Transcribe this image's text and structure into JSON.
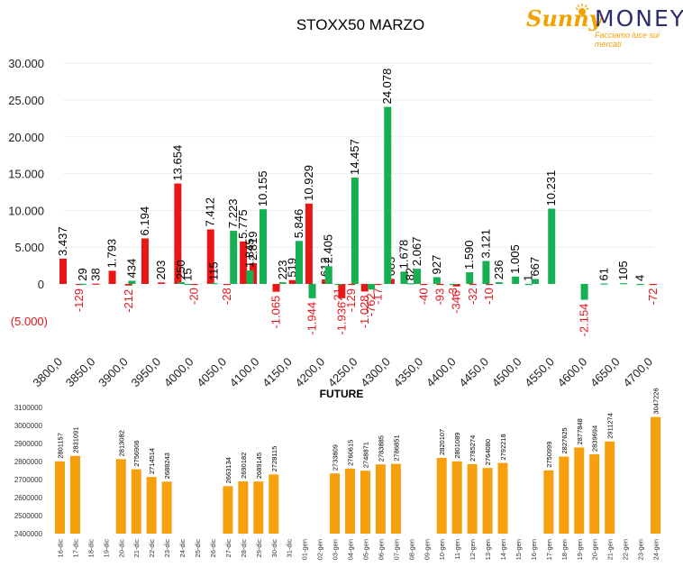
{
  "logo": {
    "text_a": "Sunny",
    "text_b": "MONEY",
    "tagline": "Facciamo luce sui mercati"
  },
  "colors": {
    "red": "#ea1616",
    "green": "#16b052",
    "orange": "#f5a00c",
    "neg_label": "#e8141b",
    "axis_text": "#222222"
  },
  "chart_data": [
    {
      "type": "bar",
      "title": "STOXX50 MARZO",
      "ylim": [
        -5000,
        30000
      ],
      "yticks": [
        {
          "v": 30000,
          "label": "30.000"
        },
        {
          "v": 25000,
          "label": "25.000"
        },
        {
          "v": 20000,
          "label": "20.000"
        },
        {
          "v": 15000,
          "label": "15.000"
        },
        {
          "v": 10000,
          "label": "10.000"
        },
        {
          "v": 5000,
          "label": "5.000"
        },
        {
          "v": 0,
          "label": "0"
        },
        {
          "v": -5000,
          "label": "(5.000)"
        }
      ],
      "xticks": [
        {
          "v": 3800,
          "label": "3800,0"
        },
        {
          "v": 3850,
          "label": "3850,0"
        },
        {
          "v": 3900,
          "label": "3900,0"
        },
        {
          "v": 3950,
          "label": "3950,0"
        },
        {
          "v": 4000,
          "label": "4000,0"
        },
        {
          "v": 4050,
          "label": "4050,0"
        },
        {
          "v": 4100,
          "label": "4100,0"
        },
        {
          "v": 4150,
          "label": "4150,0"
        },
        {
          "v": 4200,
          "label": "4200,0"
        },
        {
          "v": 4250,
          "label": "4250,0"
        },
        {
          "v": 4300,
          "label": "4300,0"
        },
        {
          "v": 4350,
          "label": "4350,0"
        },
        {
          "v": 4400,
          "label": "4400,0"
        },
        {
          "v": 4450,
          "label": "4450,0"
        },
        {
          "v": 4500,
          "label": "4500,0"
        },
        {
          "v": 4550,
          "label": "4550,0"
        },
        {
          "v": 4600,
          "label": "4600,0"
        },
        {
          "v": 4650,
          "label": "4650,0"
        },
        {
          "v": 4700,
          "label": "4700,0"
        }
      ],
      "series": [
        {
          "color": "red",
          "points": [
            {
              "x": 3800,
              "y": 3437,
              "label": "3.437"
            },
            {
              "x": 3825,
              "y": -129,
              "label": "-129"
            },
            {
              "x": 3850,
              "y": 38,
              "label": "38"
            },
            {
              "x": 3875,
              "y": 1793,
              "label": "1.793"
            },
            {
              "x": 3900,
              "y": -212,
              "label": "-212"
            },
            {
              "x": 3925,
              "y": 6194,
              "label": "6.194"
            },
            {
              "x": 3950,
              "y": 203,
              "label": "203"
            },
            {
              "x": 3975,
              "y": 13654,
              "label": "13.654"
            },
            {
              "x": 4000,
              "y": -20,
              "label": "-20"
            },
            {
              "x": 4025,
              "y": 7412,
              "label": "7.412"
            },
            {
              "x": 4050,
              "y": -28,
              "label": "-28"
            },
            {
              "x": 4075,
              "y": 5775,
              "label": "5.775"
            },
            {
              "x": 4090,
              "y": 2819,
              "label": "2.819"
            },
            {
              "x": 4125,
              "y": -1065,
              "label": "-1.065"
            },
            {
              "x": 4150,
              "y": 519,
              "label": "519"
            },
            {
              "x": 4175,
              "y": 10929,
              "label": "10.929"
            },
            {
              "x": 4200,
              "y": 612,
              "label": "612"
            },
            {
              "x": 4225,
              "y": -1936,
              "label": "-1.936"
            },
            {
              "x": 4240,
              "y": -129,
              "label": "-129"
            },
            {
              "x": 4260,
              "y": -1028,
              "label": "-1.028"
            },
            {
              "x": 4280,
              "y": -17,
              "label": "-17"
            },
            {
              "x": 4300,
              "y": 685,
              "label": "685"
            },
            {
              "x": 4350,
              "y": -40,
              "label": "-40"
            },
            {
              "x": 4375,
              "y": -93,
              "label": "-93"
            },
            {
              "x": 4400,
              "y": -346,
              "label": "-346"
            },
            {
              "x": 4425,
              "y": -32,
              "label": "-32"
            },
            {
              "x": 4450,
              "y": -10,
              "label": "-10"
            },
            {
              "x": 4700,
              "y": -72,
              "label": "-72"
            }
          ]
        },
        {
          "color": "green",
          "points": [
            {
              "x": 3830,
              "y": 29,
              "label": "29"
            },
            {
              "x": 3905,
              "y": 434,
              "label": "434"
            },
            {
              "x": 3980,
              "y": 250,
              "label": "250"
            },
            {
              "x": 3990,
              "y": 15,
              "label": "15"
            },
            {
              "x": 4030,
              "y": 115,
              "label": "115"
            },
            {
              "x": 4060,
              "y": 7223,
              "label": "7.223"
            },
            {
              "x": 4085,
              "y": 1845,
              "label": "1.845"
            },
            {
              "x": 4105,
              "y": 10155,
              "label": "10.155"
            },
            {
              "x": 4135,
              "y": 223,
              "label": "223"
            },
            {
              "x": 4160,
              "y": 5846,
              "label": "5.846"
            },
            {
              "x": 4180,
              "y": -1944,
              "label": "-1.944"
            },
            {
              "x": 4205,
              "y": 2405,
              "label": "2.405"
            },
            {
              "x": 4220,
              "y": -21,
              "label": "-21"
            },
            {
              "x": 4245,
              "y": 14457,
              "label": "14.457"
            },
            {
              "x": 4270,
              "y": -762,
              "label": "-762"
            },
            {
              "x": 4295,
              "y": 24078,
              "label": "24.078"
            },
            {
              "x": 4320,
              "y": 1678,
              "label": "1.678"
            },
            {
              "x": 4330,
              "y": 82,
              "label": "82"
            },
            {
              "x": 4340,
              "y": 2067,
              "label": "2.067"
            },
            {
              "x": 4370,
              "y": 927,
              "label": "927"
            },
            {
              "x": 4395,
              "y": -3,
              "label": "-3"
            },
            {
              "x": 4420,
              "y": 1590,
              "label": "1.590"
            },
            {
              "x": 4445,
              "y": 3121,
              "label": "3.121"
            },
            {
              "x": 4465,
              "y": 236,
              "label": "236"
            },
            {
              "x": 4490,
              "y": 1005,
              "label": "1.005"
            },
            {
              "x": 4510,
              "y": 1,
              "label": "1"
            },
            {
              "x": 4520,
              "y": 667,
              "label": "667"
            },
            {
              "x": 4545,
              "y": 10231,
              "label": "10.231"
            },
            {
              "x": 4595,
              "y": -2154,
              "label": "-2.154"
            },
            {
              "x": 4625,
              "y": 61,
              "label": "61"
            },
            {
              "x": 4655,
              "y": 105,
              "label": "105"
            },
            {
              "x": 4680,
              "y": 4,
              "label": "4"
            }
          ]
        }
      ]
    },
    {
      "type": "bar",
      "title": "FUTURE",
      "ylim": [
        2400000,
        3100000
      ],
      "yticks": [
        {
          "v": 3100000,
          "label": "3100000"
        },
        {
          "v": 3000000,
          "label": "3000000"
        },
        {
          "v": 2900000,
          "label": "2900000"
        },
        {
          "v": 2800000,
          "label": "2800000"
        },
        {
          "v": 2700000,
          "label": "2700000"
        },
        {
          "v": 2600000,
          "label": "2600000"
        },
        {
          "v": 2500000,
          "label": "2500000"
        },
        {
          "v": 2400000,
          "label": "2400000"
        }
      ],
      "categories": [
        "16-dic",
        "17-dic",
        "18-dic",
        "19-dic",
        "20-dic",
        "21-dic",
        "22-dic",
        "23-dic",
        "24-dic",
        "25-dic",
        "26-dic",
        "27-dic",
        "28-dic",
        "29-dic",
        "30-dic",
        "31-dic",
        "01-gen",
        "02-gen",
        "03-gen",
        "04-gen",
        "05-gen",
        "06-gen",
        "07-gen",
        "08-gen",
        "09-gen",
        "10-gen",
        "11-gen",
        "12-gen",
        "13-gen",
        "14-gen",
        "15-gen",
        "16-gen",
        "17-gen",
        "18-gen",
        "19-gen",
        "20-gen",
        "21-gen",
        "22-gen",
        "23-gen",
        "24-gen"
      ],
      "values": [
        2801157,
        2831091,
        null,
        null,
        2813082,
        2756906,
        2714514,
        2688243,
        null,
        null,
        null,
        2663134,
        2690182,
        2689145,
        2728115,
        null,
        null,
        null,
        2733809,
        2760615,
        2748871,
        2783885,
        2786851,
        null,
        null,
        2820107,
        2801089,
        2785274,
        2764080,
        2792218,
        null,
        null,
        2750999,
        2827625,
        2877848,
        2839694,
        2911274,
        null,
        null,
        3047226
      ]
    }
  ]
}
